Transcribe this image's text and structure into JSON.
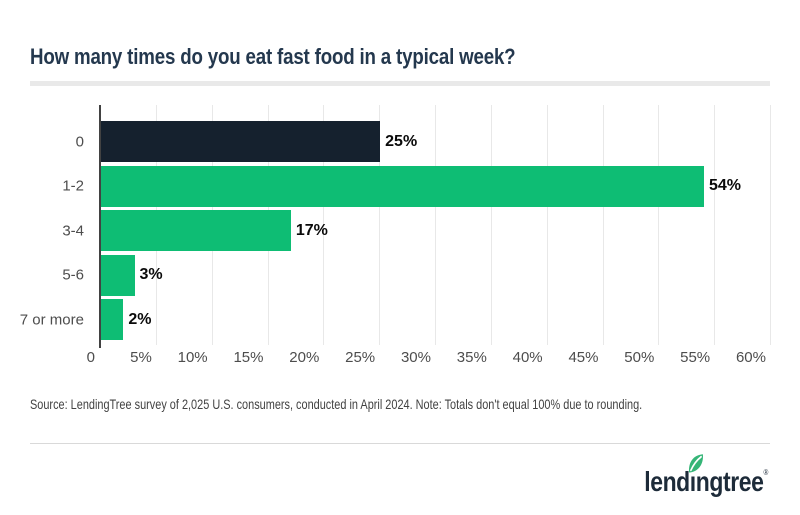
{
  "page": {
    "title": "How many times do you eat fast food in a typical week?"
  },
  "chart_data": {
    "type": "bar",
    "orientation": "horizontal",
    "title": "How many times do you eat fast food in a typical week?",
    "categories": [
      "0",
      "1-2",
      "3-4",
      "5-6",
      "7 or more"
    ],
    "values": [
      25,
      54,
      17,
      3,
      2
    ],
    "value_labels": [
      "25%",
      "54%",
      "17%",
      "3%",
      "2%"
    ],
    "xlim": [
      0,
      60
    ],
    "x_tick_step": 5,
    "x_tick_labels": [
      "0",
      "5%",
      "10%",
      "15%",
      "20%",
      "25%",
      "30%",
      "35%",
      "40%",
      "45%",
      "50%",
      "55%",
      "60%"
    ],
    "grid": true,
    "legend": false,
    "bar_colors": [
      "#15212e",
      "#0ebd74",
      "#0ebd74",
      "#0ebd74",
      "#0ebd74"
    ],
    "colors": {
      "bar_dark": "#15212e",
      "bar_green": "#0ebd74",
      "axis": "#424242",
      "gridline": "#e8e8e8",
      "tick_text": "#4d4d4d",
      "value_text": "#0a0a0a"
    }
  },
  "footer": {
    "source_note": "Source: LendingTree survey of 2,025 U.S. consumers, conducted in April 2024. Note: Totals don't equal 100% due to rounding.",
    "logo": {
      "brand": "lendingtree",
      "text_pre": "lend",
      "text_i": "ı",
      "text_post": "ngtree",
      "registered_mark": "®",
      "leaf_color": "#35b577",
      "text_color": "#1d2b39"
    }
  }
}
